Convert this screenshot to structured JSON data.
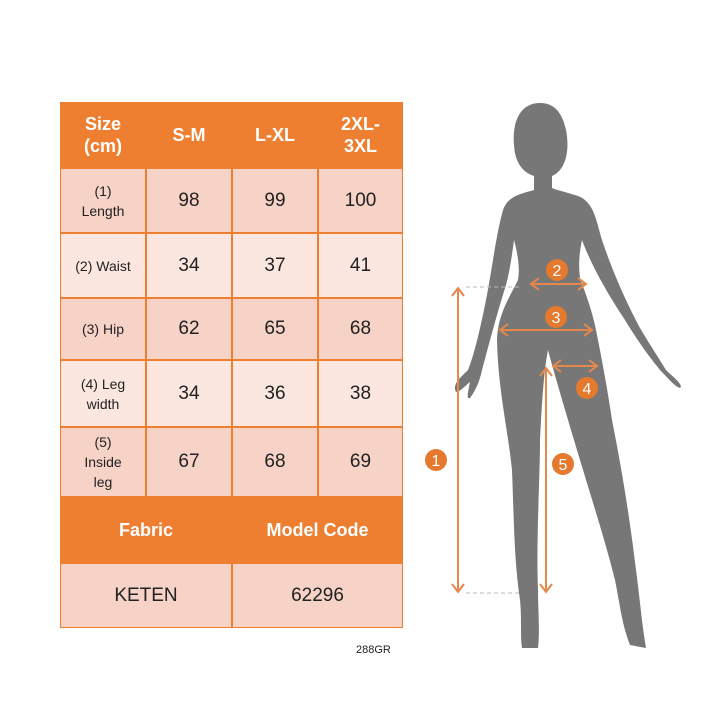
{
  "table": {
    "header": [
      "Size (cm)",
      "S-M",
      "L-XL",
      "2XL-3XL"
    ],
    "rows": [
      {
        "label": "(1) Length",
        "values": [
          "98",
          "99",
          "100"
        ]
      },
      {
        "label": "(2) Waist",
        "values": [
          "34",
          "37",
          "41"
        ]
      },
      {
        "label": "(3) Hip",
        "values": [
          "62",
          "65",
          "68"
        ]
      },
      {
        "label": "(4) Leg width",
        "values": [
          "34",
          "36",
          "38"
        ]
      },
      {
        "label": "(5) Inside leg",
        "values": [
          "67",
          "68",
          "69"
        ]
      }
    ],
    "footer_header": [
      "Fabric",
      "Model Code"
    ],
    "footer_values": [
      "KETEN",
      "62296"
    ]
  },
  "product_code": "288GR",
  "diagram": {
    "markers": [
      "1",
      "2",
      "3",
      "4",
      "5"
    ]
  },
  "colors": {
    "accent": "#ee7f31",
    "row_dark": "#f7d2c6",
    "row_light": "#fbe7e0",
    "silhouette": "#777777"
  }
}
